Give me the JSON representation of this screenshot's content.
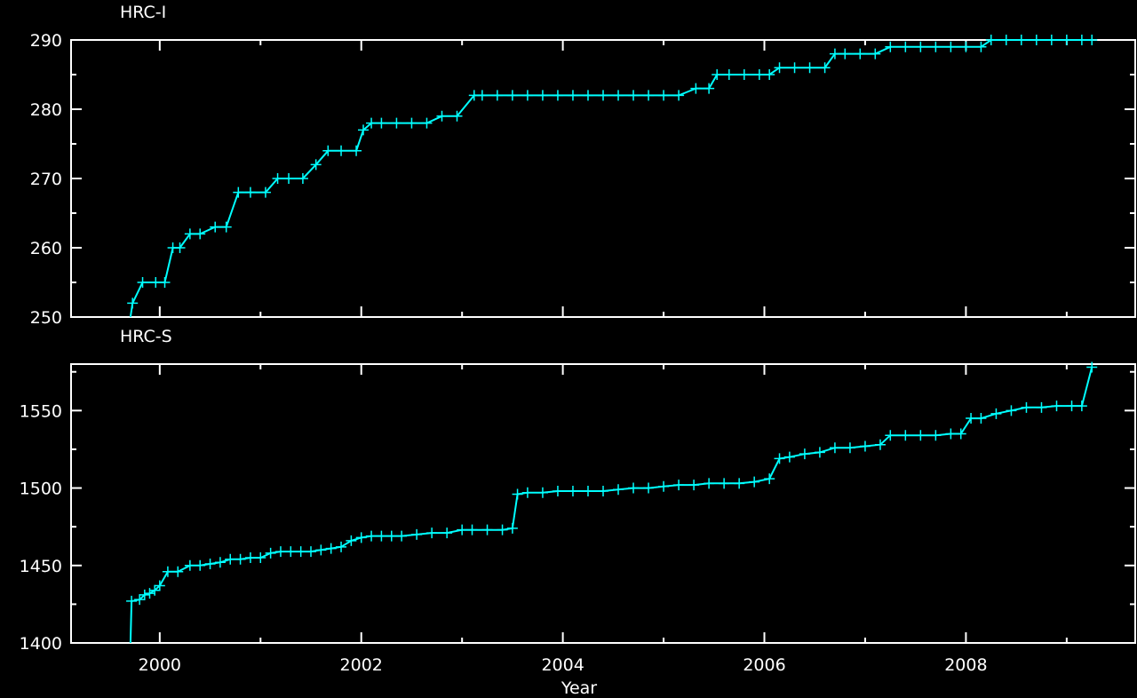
{
  "chart_data": [
    {
      "type": "line",
      "title": "HRC-I",
      "xlabel": "",
      "ylabel": "",
      "xlim": [
        1999.12,
        2009.68
      ],
      "ylim": [
        250,
        290
      ],
      "xticks": [
        "2000",
        "2002",
        "2004",
        "2006",
        "2008"
      ],
      "yticks": [
        "250",
        "260",
        "270",
        "280",
        "290"
      ],
      "grid": false,
      "colors": {
        "line": "#00ffff",
        "axes": "#ffffff",
        "background": "#000000"
      },
      "series": [
        {
          "x": [
            1999.71,
            1999.73,
            1999.83,
            1999.96,
            2000.05,
            2000.13,
            2000.2,
            2000.3,
            2000.4,
            2000.55,
            2000.66,
            2000.78,
            2000.9,
            2001.05,
            2001.17,
            2001.28,
            2001.42,
            2001.55,
            2001.67,
            2001.8,
            2001.95,
            2002.02,
            2002.1,
            2002.2,
            2002.35,
            2002.5,
            2002.65,
            2002.8,
            2002.95,
            2003.12,
            2003.2,
            2003.35,
            2003.5,
            2003.65,
            2003.8,
            2003.95,
            2004.1,
            2004.25,
            2004.4,
            2004.55,
            2004.7,
            2004.85,
            2005.0,
            2005.15,
            2005.32,
            2005.45,
            2005.53,
            2005.65,
            2005.8,
            2005.95,
            2006.05,
            2006.15,
            2006.3,
            2006.45,
            2006.6,
            2006.7,
            2006.8,
            2006.95,
            2007.1,
            2007.25,
            2007.4,
            2007.55,
            2007.7,
            2007.85,
            2008.0,
            2008.15,
            2008.25,
            2008.4,
            2008.55,
            2008.7,
            2008.85,
            2009.0,
            2009.15,
            2009.25
          ],
          "y": [
            250,
            252,
            255,
            255,
            255,
            260,
            260,
            262,
            262,
            263,
            263,
            268,
            268,
            268,
            270,
            270,
            270,
            272,
            274,
            274,
            274,
            277,
            278,
            278,
            278,
            278,
            278,
            279,
            279,
            282,
            282,
            282,
            282,
            282,
            282,
            282,
            282,
            282,
            282,
            282,
            282,
            282,
            282,
            282,
            283,
            283,
            285,
            285,
            285,
            285,
            285,
            286,
            286,
            286,
            286,
            288,
            288,
            288,
            288,
            289,
            289,
            289,
            289,
            289,
            289,
            289,
            290,
            290,
            290,
            290,
            290,
            290,
            290,
            290
          ]
        }
      ]
    },
    {
      "type": "line",
      "title": "HRC-S",
      "xlabel": "Year",
      "ylabel": "",
      "xlim": [
        1999.12,
        2009.68
      ],
      "ylim": [
        1400,
        1580
      ],
      "xticks": [
        "2000",
        "2002",
        "2004",
        "2006",
        "2008"
      ],
      "yticks": [
        "1400",
        "1450",
        "1500",
        "1550"
      ],
      "grid": false,
      "colors": {
        "line": "#00ffff",
        "axes": "#ffffff",
        "background": "#000000"
      },
      "series": [
        {
          "x": [
            1999.71,
            1999.72,
            1999.8,
            1999.85,
            1999.9,
            1999.95,
            2000.0,
            2000.08,
            2000.18,
            2000.3,
            2000.4,
            2000.5,
            2000.6,
            2000.7,
            2000.8,
            2000.9,
            2001.0,
            2001.1,
            2001.2,
            2001.3,
            2001.4,
            2001.5,
            2001.6,
            2001.7,
            2001.8,
            2001.9,
            2002.0,
            2002.1,
            2002.2,
            2002.3,
            2002.4,
            2002.55,
            2002.7,
            2002.85,
            2003.0,
            2003.1,
            2003.25,
            2003.4,
            2003.5,
            2003.55,
            2003.65,
            2003.8,
            2003.95,
            2004.1,
            2004.25,
            2004.4,
            2004.55,
            2004.7,
            2004.85,
            2005.0,
            2005.15,
            2005.3,
            2005.45,
            2005.6,
            2005.75,
            2005.9,
            2006.05,
            2006.15,
            2006.25,
            2006.4,
            2006.55,
            2006.7,
            2006.85,
            2007.0,
            2007.15,
            2007.25,
            2007.4,
            2007.55,
            2007.7,
            2007.85,
            2007.95,
            2008.05,
            2008.15,
            2008.3,
            2008.45,
            2008.6,
            2008.75,
            2008.9,
            2009.05,
            2009.15,
            2009.25
          ],
          "y": [
            1400,
            1427,
            1428,
            1431,
            1432,
            1434,
            1437,
            1446,
            1446,
            1450,
            1450,
            1451,
            1452,
            1454,
            1454,
            1455,
            1455,
            1458,
            1459,
            1459,
            1459,
            1459,
            1460,
            1461,
            1462,
            1466,
            1468,
            1469,
            1469,
            1469,
            1469,
            1470,
            1471,
            1471,
            1473,
            1473,
            1473,
            1473,
            1474,
            1496,
            1497,
            1497,
            1498,
            1498,
            1498,
            1498,
            1499,
            1500,
            1500,
            1501,
            1502,
            1502,
            1503,
            1503,
            1503,
            1504,
            1506,
            1519,
            1520,
            1522,
            1523,
            1526,
            1526,
            1527,
            1528,
            1534,
            1534,
            1534,
            1534,
            1535,
            1535,
            1545,
            1545,
            1548,
            1550,
            1552,
            1552,
            1553,
            1553,
            1553,
            1578
          ]
        }
      ]
    }
  ]
}
